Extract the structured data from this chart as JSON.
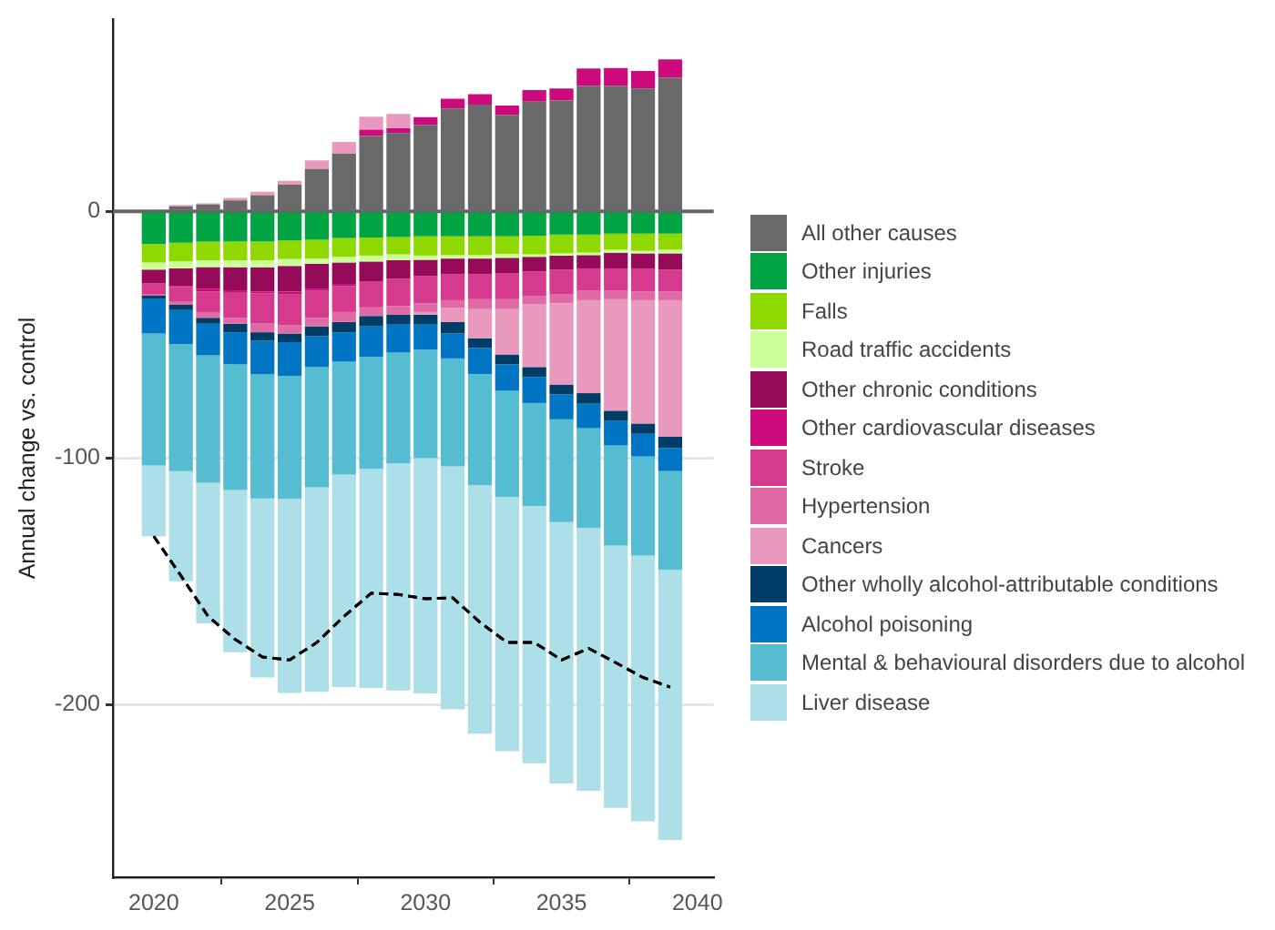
{
  "chart_data": {
    "type": "bar",
    "stacked": true,
    "ylabel": "Annual change vs. control",
    "x": [
      2020,
      2021,
      2022,
      2023,
      2024,
      2025,
      2026,
      2027,
      2028,
      2029,
      2030,
      2031,
      2032,
      2033,
      2034,
      2035,
      2036,
      2037,
      2038,
      2039
    ],
    "xlim": [
      2018.5,
      2040.6
    ],
    "xticks": [
      2020,
      2025,
      2030,
      2035,
      2040
    ],
    "ylim": [
      -270,
      78
    ],
    "yticks": [
      -200,
      -100,
      0
    ],
    "grid": "y",
    "legend": "right",
    "ref_lines": [
      {
        "axis": "y",
        "value": 0,
        "color": "#666666"
      }
    ],
    "series": [
      {
        "name": "All other causes",
        "color": "#696969",
        "values": [
          0,
          2.1,
          2.8,
          4.5,
          6.6,
          10.8,
          17.2,
          23.5,
          30.6,
          31.8,
          35.1,
          41.7,
          43.3,
          39.1,
          44.5,
          45,
          50.9,
          50.9,
          49.9,
          54.2
        ]
      },
      {
        "name": "Other injuries",
        "color": "#00a443",
        "values": [
          -13.2,
          -12.7,
          -12.2,
          -12.2,
          -12.2,
          -11.8,
          -11.5,
          -10.8,
          -10.6,
          -10.4,
          -10.1,
          -10.1,
          -10.1,
          -10.1,
          -9.9,
          -9.4,
          -9.4,
          -9,
          -9,
          -9
        ]
      },
      {
        "name": "Falls",
        "color": "#8fd900",
        "values": [
          -7.5,
          -7.6,
          -7.6,
          -7.6,
          -7.6,
          -7.5,
          -7.6,
          -7.6,
          -7.3,
          -7,
          -7.8,
          -7.6,
          -7.6,
          -7.1,
          -7.5,
          -7.6,
          -7.3,
          -6.5,
          -7,
          -6.5
        ]
      },
      {
        "name": "Road traffic accidents",
        "color": "#ccff99",
        "values": [
          -2.9,
          -2.8,
          -2.8,
          -2.8,
          -2.8,
          -2.8,
          -2.1,
          -2.3,
          -2.4,
          -2.4,
          -1.7,
          -1.4,
          -1.4,
          -1.6,
          -1,
          -0.9,
          -1,
          -1.2,
          -1,
          -1.5
        ]
      },
      {
        "name": "Other chronic conditions",
        "color": "#960a5a",
        "values": [
          -5.6,
          -7.1,
          -8.7,
          -9.4,
          -9.9,
          -10.4,
          -10.1,
          -9,
          -8,
          -7.5,
          -6.5,
          -6.3,
          -6.3,
          -6.2,
          -5.9,
          -5.7,
          -5.4,
          -6.4,
          -6.1,
          -6.6
        ]
      },
      {
        "name": "Other cardiovascular diseases",
        "color": "#cc0a7d",
        "values": [
          0,
          -0.4,
          -1.2,
          -1,
          -0.7,
          -1.2,
          -0.7,
          -0.5,
          2.6,
          1.9,
          3.1,
          4,
          4.3,
          3.8,
          4.7,
          4.9,
          7.1,
          7.3,
          7.1,
          7.5
        ]
      },
      {
        "name": "Stroke",
        "color": "#d63a8f",
        "values": [
          -4.5,
          -6.1,
          -8.3,
          -10.1,
          -12.3,
          -12.5,
          -11.1,
          -10.6,
          -10.6,
          -11.1,
          -11.1,
          -10.6,
          -10.2,
          -10.6,
          -10.1,
          -10.1,
          -8.9,
          -8.9,
          -9.4,
          -8.9
        ]
      },
      {
        "name": "Hypertension",
        "color": "#e06aa6",
        "values": [
          -0.5,
          -1,
          -2.3,
          -2.4,
          -3.5,
          -3.3,
          -3.5,
          -4,
          -3.5,
          -3.5,
          -3.6,
          -3.1,
          -4,
          -4,
          -3.3,
          -3.5,
          -4,
          -3.6,
          -3.5,
          -3.5
        ]
      },
      {
        "name": "Cancers",
        "color": "#e899bd",
        "values": [
          0,
          0.5,
          0.5,
          1,
          1.4,
          1.6,
          3.5,
          4.7,
          5.2,
          5.8,
          -1.1,
          -5.7,
          -11.8,
          -18.4,
          -25.4,
          -33,
          -37.7,
          -45.2,
          -50,
          -55.4
        ]
      },
      {
        "name": "Other wholly alcohol-attributable conditions",
        "color": "#003d66",
        "values": [
          -1.1,
          -2.3,
          -2.4,
          -3.5,
          -3.5,
          -3.5,
          -4,
          -4.2,
          -4.2,
          -4,
          -4,
          -4.7,
          -4,
          -4,
          -4,
          -4,
          -4.3,
          -4.2,
          -4.2,
          -4.5
        ]
      },
      {
        "name": "Alcohol poisoning",
        "color": "#0075c4",
        "values": [
          -14.2,
          -13.7,
          -12.9,
          -13,
          -13.5,
          -13.7,
          -12.5,
          -11.8,
          -12.3,
          -11.3,
          -10.2,
          -10.1,
          -10.6,
          -10.6,
          -10.6,
          -10.1,
          -9.9,
          -9.9,
          -9.2,
          -9.4
        ]
      },
      {
        "name": "Mental & behavioural disorders due to alcohol",
        "color": "#55bcd1",
        "values": [
          -53.5,
          -51.6,
          -51.6,
          -51,
          -50.4,
          -49.9,
          -48.8,
          -45.9,
          -45.5,
          -45,
          -44,
          -43.8,
          -45,
          -43.1,
          -41.7,
          -41.7,
          -40.5,
          -40.6,
          -40.1,
          -40.1
        ]
      },
      {
        "name": "Liver disease",
        "color": "#addfe9",
        "values": [
          -28.7,
          -44.7,
          -57,
          -65.8,
          -72.6,
          -78.7,
          -82.9,
          -86.2,
          -88.8,
          -92.1,
          -95.4,
          -98.5,
          -100.8,
          -103.2,
          -104.4,
          -106,
          -106.5,
          -106.4,
          -107.8,
          -109.5
        ]
      },
      {
        "type": "line",
        "color": "#000000",
        "line_style": "dashed",
        "marker": "none",
        "values": [
          -131.7,
          -147.7,
          -164.2,
          -173.6,
          -180.7,
          -181.9,
          -174.8,
          -164.2,
          -154.8,
          -155.3,
          -157.1,
          -156.7,
          -166.6,
          -174.8,
          -174.8,
          -181.9,
          -177.2,
          -183,
          -189,
          -192.9
        ]
      }
    ]
  }
}
